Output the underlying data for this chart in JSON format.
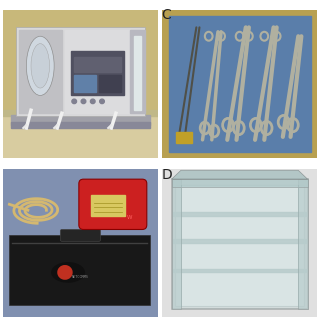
{
  "figsize": [
    3.2,
    3.2
  ],
  "dpi": 100,
  "background_color": "#ffffff",
  "label_C": "C",
  "label_D": "D",
  "label_fontsize": 10,
  "white_bg": "#ffffff",
  "panel_A": {
    "bg_wall": "#c8b87a",
    "bg_table": "#d4c88a",
    "machine_body": "#d0d0d0",
    "machine_base": "#8a8a8a",
    "tube_color": "#e8e8e8",
    "screen_color": "#404040"
  },
  "panel_C": {
    "tray_border": "#b8a050",
    "drape": "#5a7eaa",
    "instrument_silver": "#b8b8a0",
    "instrument_gold": "#c8a830",
    "ring_color": "#909080"
  },
  "panel_B": {
    "surface": "#8090b0",
    "cable_color": "#d4b870",
    "device_red": "#cc2020",
    "device_screen": "#d8c860",
    "bag_color": "#181818",
    "bag_logo": "#c03020"
  },
  "panel_D": {
    "bg": "#e0e0e0",
    "container_face": "#d0dce0",
    "container_edge": "#909898",
    "shelf_color": "#b8cccc"
  }
}
